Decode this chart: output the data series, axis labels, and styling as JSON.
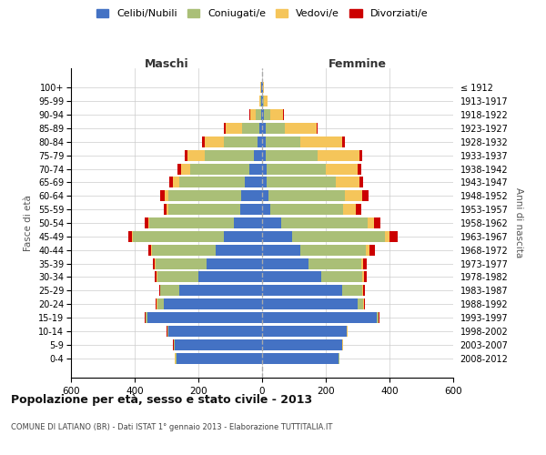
{
  "age_groups": [
    "0-4",
    "5-9",
    "10-14",
    "15-19",
    "20-24",
    "25-29",
    "30-34",
    "35-39",
    "40-44",
    "45-49",
    "50-54",
    "55-59",
    "60-64",
    "65-69",
    "70-74",
    "75-79",
    "80-84",
    "85-89",
    "90-94",
    "95-99",
    "100+"
  ],
  "birth_years": [
    "2008-2012",
    "2003-2007",
    "1998-2002",
    "1993-1997",
    "1988-1992",
    "1983-1987",
    "1978-1982",
    "1973-1977",
    "1968-1972",
    "1963-1967",
    "1958-1962",
    "1953-1957",
    "1948-1952",
    "1943-1947",
    "1938-1942",
    "1933-1937",
    "1928-1932",
    "1923-1927",
    "1918-1922",
    "1913-1917",
    "≤ 1912"
  ],
  "male_celibi": [
    270,
    275,
    295,
    360,
    310,
    260,
    200,
    175,
    145,
    120,
    90,
    70,
    65,
    55,
    40,
    25,
    15,
    8,
    4,
    2,
    2
  ],
  "male_coniugati": [
    2,
    2,
    2,
    5,
    20,
    60,
    130,
    160,
    200,
    285,
    265,
    225,
    230,
    205,
    185,
    155,
    105,
    55,
    15,
    4,
    2
  ],
  "male_vedovi": [
    1,
    1,
    1,
    1,
    1,
    1,
    1,
    2,
    3,
    5,
    3,
    5,
    10,
    20,
    30,
    55,
    60,
    50,
    18,
    3,
    1
  ],
  "male_divorziati": [
    1,
    1,
    1,
    2,
    2,
    3,
    5,
    5,
    10,
    10,
    10,
    10,
    15,
    12,
    12,
    8,
    10,
    8,
    3,
    0,
    0
  ],
  "female_celibi": [
    240,
    250,
    265,
    360,
    300,
    250,
    185,
    145,
    120,
    95,
    60,
    25,
    20,
    15,
    15,
    10,
    10,
    10,
    5,
    3,
    2
  ],
  "female_coniugati": [
    2,
    2,
    2,
    5,
    18,
    65,
    130,
    165,
    205,
    290,
    270,
    230,
    240,
    215,
    185,
    165,
    110,
    60,
    20,
    4,
    2
  ],
  "female_vedovi": [
    1,
    1,
    1,
    2,
    2,
    3,
    5,
    8,
    12,
    15,
    20,
    40,
    55,
    75,
    100,
    130,
    130,
    100,
    40,
    10,
    3
  ],
  "female_divorziati": [
    1,
    1,
    1,
    2,
    3,
    5,
    8,
    10,
    18,
    25,
    20,
    15,
    18,
    12,
    12,
    8,
    10,
    5,
    3,
    0,
    0
  ],
  "colors": {
    "celibi": "#4472C4",
    "coniugati": "#AABF77",
    "vedovi": "#F5C55A",
    "divorziati": "#CC0000"
  },
  "legend_labels": [
    "Celibi/Nubili",
    "Coniugati/e",
    "Vedovi/e",
    "Divorziati/e"
  ],
  "title": "Popolazione per età, sesso e stato civile - 2013",
  "subtitle": "COMUNE DI LATIANO (BR) - Dati ISTAT 1° gennaio 2013 - Elaborazione TUTTITALIA.IT",
  "xlabel_left": "Maschi",
  "xlabel_right": "Femmine",
  "ylabel_left": "Fasce di età",
  "ylabel_right": "Anni di nascita",
  "xlim": 600,
  "bg_color": "#FFFFFF",
  "grid_color": "#CCCCCC"
}
